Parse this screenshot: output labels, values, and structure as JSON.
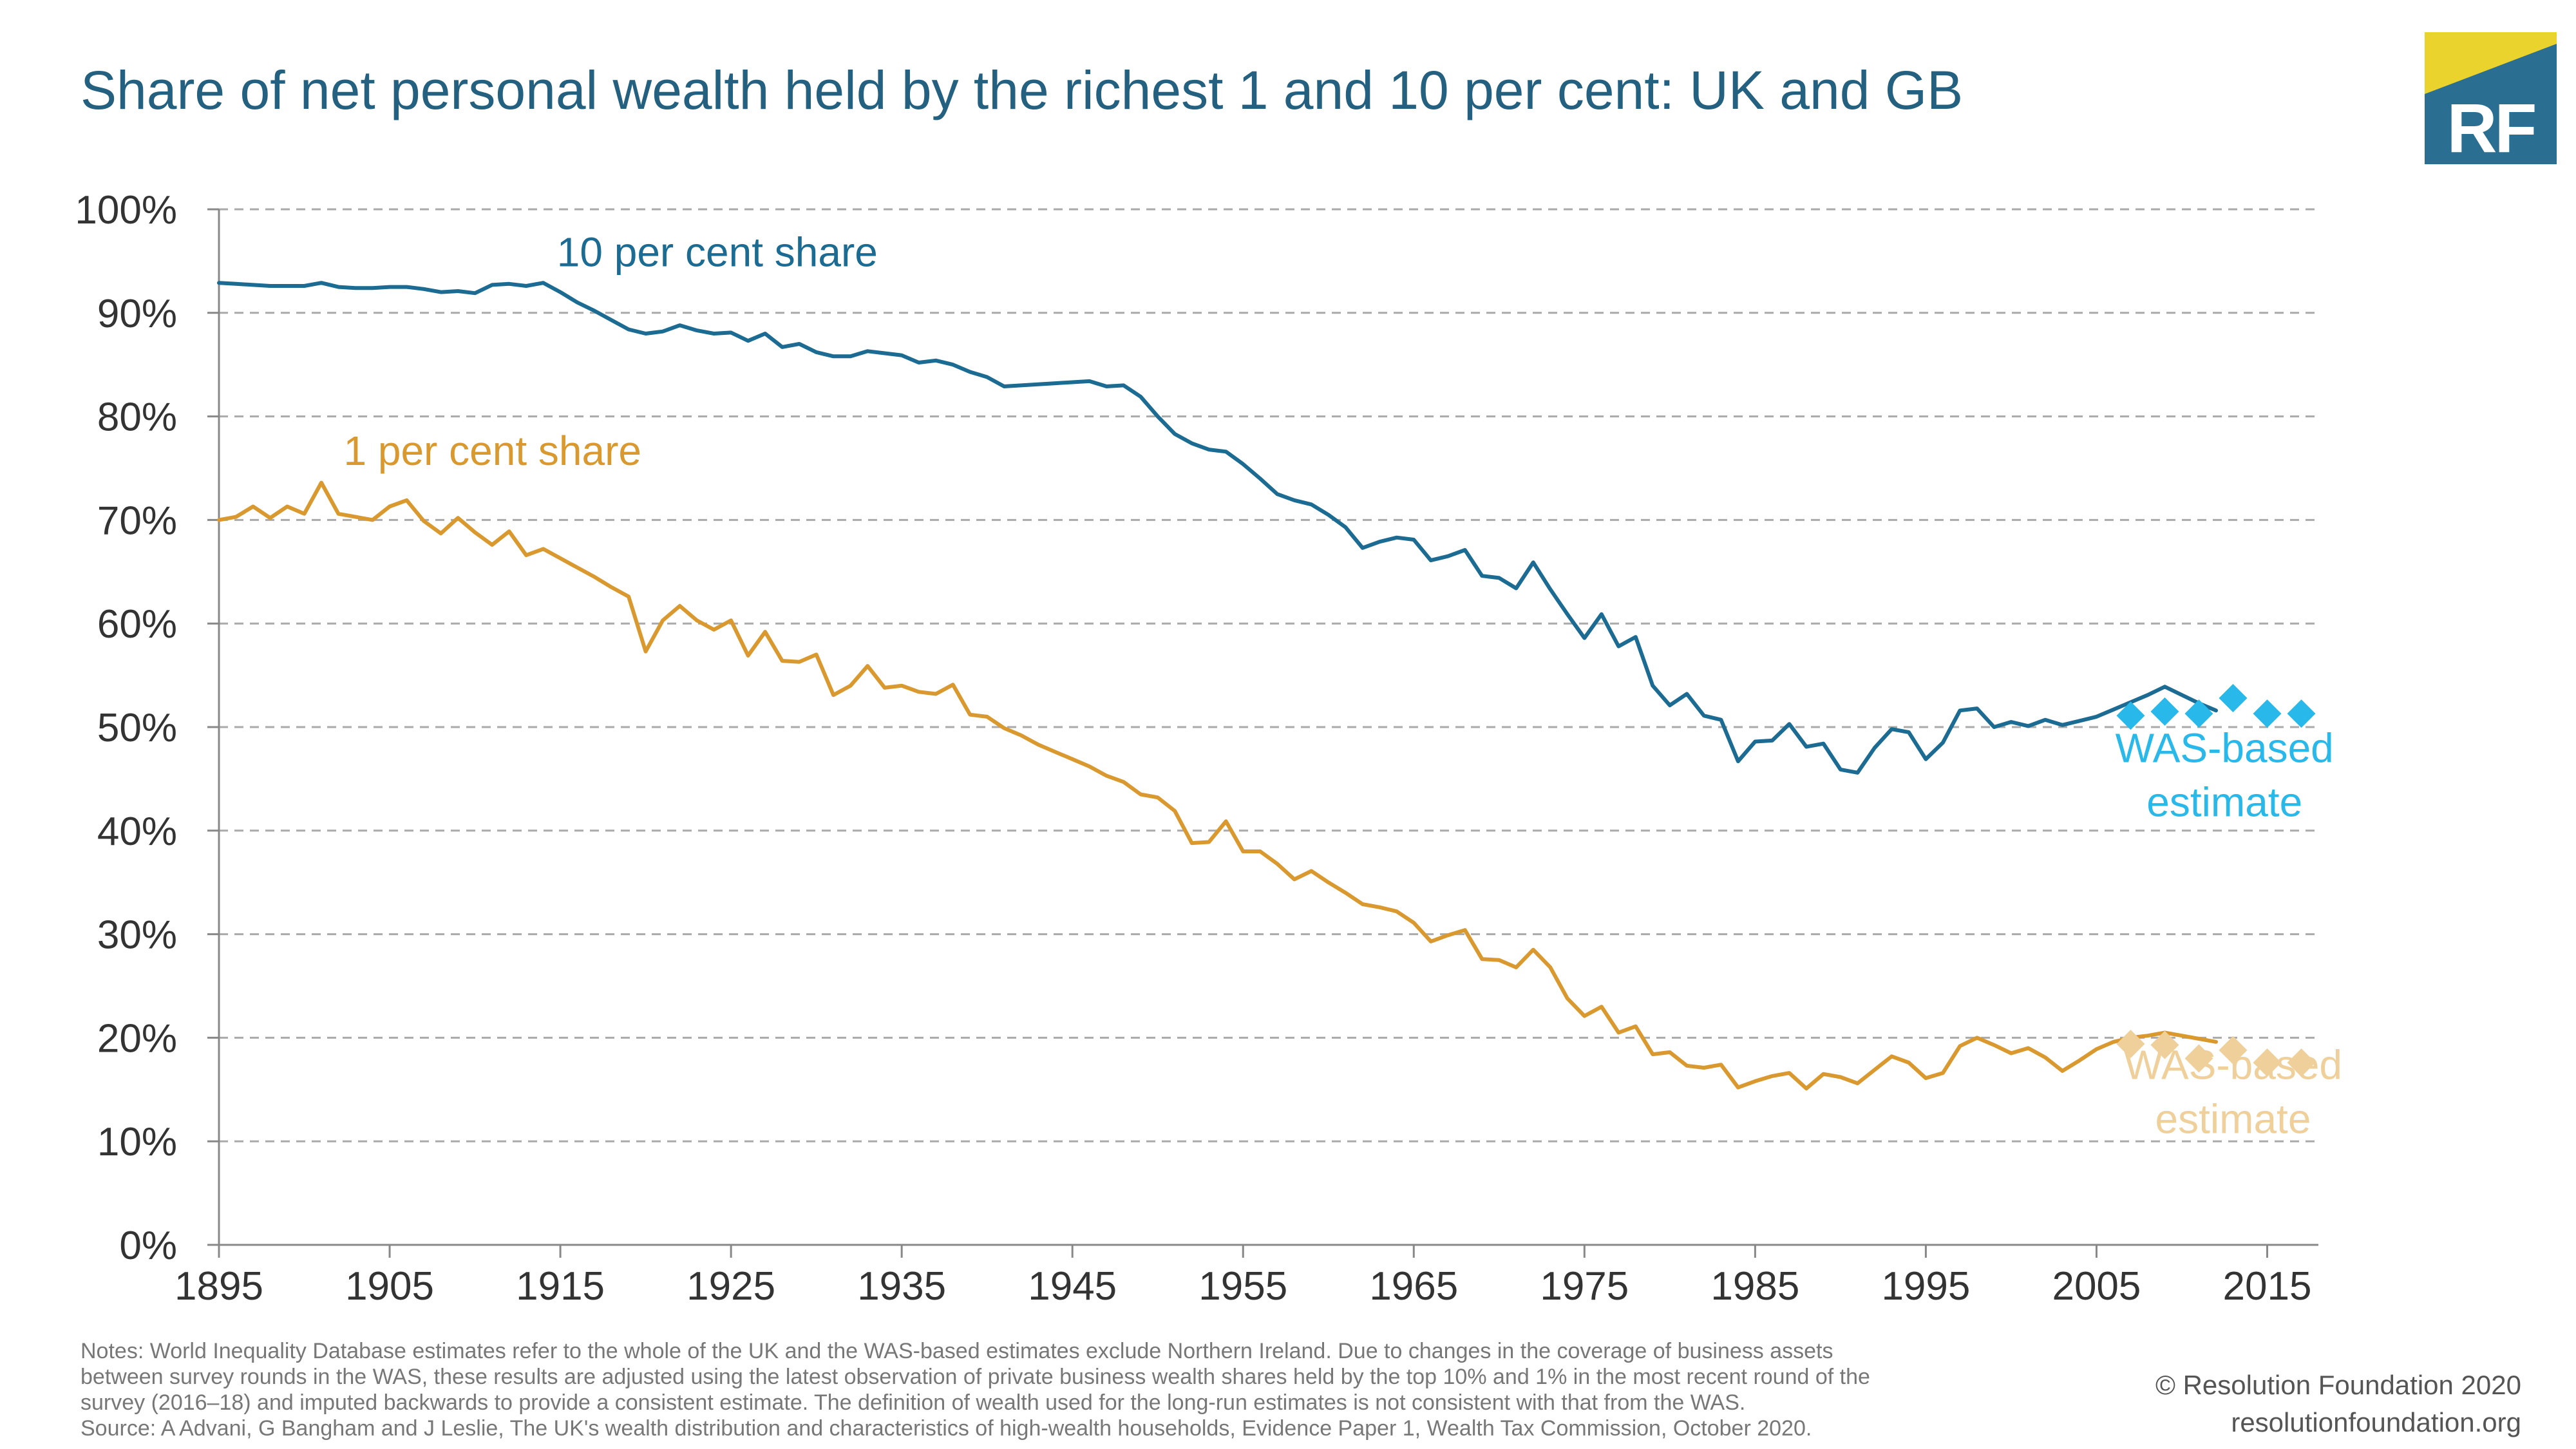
{
  "title": "Share of net personal wealth held by the richest 1 and 10 per cent: UK and GB",
  "logo_text": "RF",
  "colors": {
    "ten": "#1b6b93",
    "one": "#d9992f",
    "ten_was": "#29b8ea",
    "one_was": "#efd09a",
    "title": "#24607f",
    "grid": "#aaaaaa"
  },
  "notes": [
    "Notes: World Inequality Database estimates refer to the whole of the UK and the WAS-based estimates exclude Northern Ireland. Due to changes in the coverage of business assets",
    "between survey rounds in the WAS, these results are adjusted using the latest observation of private business wealth shares held by the top 10% and 1% in the most recent round of the",
    "survey (2016–18) and imputed backwards to provide a consistent estimate. The definition of wealth used for the long-run estimates is not consistent with that from the WAS.",
    "Source: A Advani, G Bangham and J Leslie, The UK's wealth distribution and characteristics of high-wealth households, Evidence Paper 1, Wealth Tax Commission, October 2020."
  ],
  "credit": {
    "line1": "© Resolution Foundation 2020",
    "line2": "resolutionfoundation.org"
  },
  "chart_data": {
    "type": "line",
    "title": "Share of net personal wealth held by the richest 1 and 10 per cent: UK and GB",
    "xlabel": "",
    "ylabel": "",
    "xlim": [
      1895,
      2018
    ],
    "ylim": [
      0,
      100
    ],
    "grid": true,
    "x_ticks": [
      1895,
      1905,
      1915,
      1925,
      1935,
      1945,
      1955,
      1965,
      1975,
      1985,
      1995,
      2005,
      2015
    ],
    "x_tick_labels": [
      "1895",
      "1905",
      "1915",
      "1925",
      "1935",
      "1945",
      "1955",
      "1965",
      "1975",
      "1985",
      "1995",
      "2005",
      "2015"
    ],
    "y_ticks": [
      0,
      10,
      20,
      30,
      40,
      50,
      60,
      70,
      80,
      90,
      100
    ],
    "y_tick_labels": [
      "0%",
      "10%",
      "20%",
      "30%",
      "40%",
      "50%",
      "60%",
      "70%",
      "80%",
      "90%",
      "100%"
    ],
    "series": [
      {
        "name": "10 per cent share",
        "label_lines": [
          "10 per cent share"
        ],
        "color": "#1b6b93",
        "style": "line",
        "x": [
          1895,
          1896,
          1897,
          1898,
          1899,
          1900,
          1901,
          1902,
          1903,
          1904,
          1905,
          1906,
          1907,
          1908,
          1909,
          1910,
          1911,
          1912,
          1913,
          1914,
          1915,
          1916,
          1917,
          1918,
          1919,
          1920,
          1921,
          1922,
          1923,
          1924,
          1925,
          1926,
          1927,
          1928,
          1929,
          1930,
          1931,
          1932,
          1933,
          1934,
          1935,
          1936,
          1937,
          1938,
          1939,
          1940,
          1941,
          1942,
          1943,
          1944,
          1945,
          1946,
          1947,
          1948,
          1949,
          1950,
          1951,
          1952,
          1953,
          1954,
          1955,
          1956,
          1957,
          1958,
          1959,
          1960,
          1961,
          1962,
          1963,
          1964,
          1965,
          1966,
          1967,
          1968,
          1969,
          1970,
          1971,
          1972,
          1973,
          1974,
          1975,
          1976,
          1977,
          1978,
          1979,
          1980,
          1981,
          1982,
          1983,
          1984,
          1985,
          1986,
          1987,
          1988,
          1989,
          1990,
          1991,
          1992,
          1993,
          1994,
          1995,
          1996,
          1997,
          1998,
          1999,
          2000,
          2001,
          2002,
          2003,
          2004,
          2005,
          2006,
          2007,
          2008,
          2009,
          2010,
          2011,
          2012
        ],
        "values": [
          92.9,
          92.8,
          92.7,
          92.6,
          92.6,
          92.6,
          92.9,
          92.5,
          92.4,
          92.4,
          92.5,
          92.5,
          92.3,
          92.0,
          92.1,
          91.9,
          92.7,
          92.8,
          92.6,
          92.9,
          92.0,
          91.0,
          90.2,
          89.3,
          88.4,
          88.0,
          88.2,
          88.8,
          88.3,
          88.0,
          88.1,
          87.3,
          88.0,
          86.7,
          87.0,
          86.2,
          85.8,
          85.8,
          86.3,
          86.1,
          85.9,
          85.2,
          85.4,
          85.0,
          84.3,
          83.8,
          82.9,
          83.0,
          83.1,
          83.2,
          83.3,
          83.4,
          82.9,
          83.0,
          81.9,
          80.0,
          78.3,
          77.4,
          76.8,
          76.6,
          75.4,
          74.0,
          72.5,
          71.9,
          71.5,
          70.5,
          69.3,
          67.3,
          67.9,
          68.3,
          68.1,
          66.1,
          66.5,
          67.1,
          64.6,
          64.4,
          63.4,
          65.9,
          63.3,
          60.9,
          58.6,
          60.9,
          57.8,
          58.7,
          54.0,
          52.1,
          53.2,
          51.1,
          50.7,
          46.7,
          48.6,
          48.7,
          50.3,
          48.1,
          48.4,
          45.9,
          45.6,
          48.0,
          49.8,
          49.5,
          46.9,
          48.5,
          51.6,
          51.8,
          50.0,
          50.5,
          50.1,
          50.7,
          50.2,
          50.6,
          51.0,
          51.7,
          52.4,
          53.1,
          53.9,
          53.1,
          52.3,
          51.6
        ]
      },
      {
        "name": "1 per cent share",
        "label_lines": [
          "1 per cent share"
        ],
        "color": "#d9992f",
        "style": "line",
        "x": [
          1895,
          1896,
          1897,
          1898,
          1899,
          1900,
          1901,
          1902,
          1903,
          1904,
          1905,
          1906,
          1907,
          1908,
          1909,
          1910,
          1911,
          1912,
          1913,
          1914,
          1915,
          1916,
          1917,
          1918,
          1919,
          1920,
          1921,
          1922,
          1923,
          1924,
          1925,
          1926,
          1927,
          1928,
          1929,
          1930,
          1931,
          1932,
          1933,
          1934,
          1935,
          1936,
          1937,
          1938,
          1939,
          1940,
          1941,
          1942,
          1943,
          1944,
          1945,
          1946,
          1947,
          1948,
          1949,
          1950,
          1951,
          1952,
          1953,
          1954,
          1955,
          1956,
          1957,
          1958,
          1959,
          1960,
          1961,
          1962,
          1963,
          1964,
          1965,
          1966,
          1967,
          1968,
          1969,
          1970,
          1971,
          1972,
          1973,
          1974,
          1975,
          1976,
          1977,
          1978,
          1979,
          1980,
          1981,
          1982,
          1983,
          1984,
          1985,
          1986,
          1987,
          1988,
          1989,
          1990,
          1991,
          1992,
          1993,
          1994,
          1995,
          1996,
          1997,
          1998,
          1999,
          2000,
          2001,
          2002,
          2003,
          2004,
          2005,
          2006,
          2007,
          2008,
          2009,
          2010,
          2011,
          2012
        ],
        "values": [
          70.0,
          70.3,
          71.3,
          70.2,
          71.3,
          70.6,
          73.6,
          70.6,
          70.3,
          70.0,
          71.3,
          71.9,
          69.9,
          68.7,
          70.2,
          68.8,
          67.6,
          68.9,
          66.6,
          67.2,
          66.3,
          65.4,
          64.5,
          63.5,
          62.6,
          57.3,
          60.3,
          61.7,
          60.3,
          59.4,
          60.3,
          56.9,
          59.2,
          56.4,
          56.3,
          57.0,
          53.1,
          54.0,
          55.9,
          53.8,
          54.0,
          53.4,
          53.2,
          54.1,
          51.2,
          51.0,
          49.9,
          49.2,
          48.3,
          47.6,
          46.9,
          46.2,
          45.3,
          44.7,
          43.5,
          43.2,
          41.9,
          38.8,
          38.9,
          40.9,
          38.0,
          38.0,
          36.8,
          35.3,
          36.1,
          35.0,
          34.0,
          32.9,
          32.6,
          32.2,
          31.1,
          29.3,
          29.9,
          30.4,
          27.6,
          27.5,
          26.8,
          28.5,
          26.8,
          23.8,
          22.1,
          23.0,
          20.5,
          21.1,
          18.4,
          18.6,
          17.3,
          17.1,
          17.4,
          15.2,
          15.8,
          16.3,
          16.6,
          15.1,
          16.5,
          16.2,
          15.6,
          16.9,
          18.2,
          17.6,
          16.1,
          16.6,
          19.2,
          20.0,
          19.3,
          18.5,
          19.0,
          18.1,
          16.8,
          17.8,
          18.9,
          19.6,
          20.0,
          20.2,
          20.5,
          20.2,
          19.9,
          19.6
        ]
      },
      {
        "name": "WAS-based estimate",
        "label_lines": [
          "WAS-based",
          "estimate"
        ],
        "color": "#29b8ea",
        "style": "diamond",
        "x": [
          2007,
          2009,
          2011,
          2013,
          2015,
          2017
        ],
        "values": [
          51.1,
          51.5,
          51.3,
          52.8,
          51.3,
          51.3
        ]
      },
      {
        "name": "WAS-based estimate",
        "label_lines": [
          "WAS-based",
          "estimate"
        ],
        "color": "#efd09a",
        "style": "diamond",
        "x": [
          2007,
          2009,
          2011,
          2013,
          2015,
          2017
        ],
        "values": [
          19.4,
          19.3,
          18.0,
          18.8,
          17.6,
          17.6
        ]
      }
    ],
    "annotations": [
      {
        "series": 0,
        "text": "10 per cent share",
        "anchor": "start",
        "at_x": 1914.8,
        "at_y": 94.5
      },
      {
        "series": 1,
        "text": "1 per cent share",
        "anchor": "start",
        "at_x": 1902.3,
        "at_y": 75.3
      },
      {
        "series": 2,
        "text_lines": [
          "WAS-based",
          "estimate"
        ],
        "anchor": "middle",
        "at_x": 2012.5,
        "at_y": 46.6
      },
      {
        "series": 3,
        "text_lines": [
          "WAS-based",
          "estimate"
        ],
        "anchor": "middle",
        "at_x": 2013.0,
        "at_y": 16.0
      }
    ]
  }
}
